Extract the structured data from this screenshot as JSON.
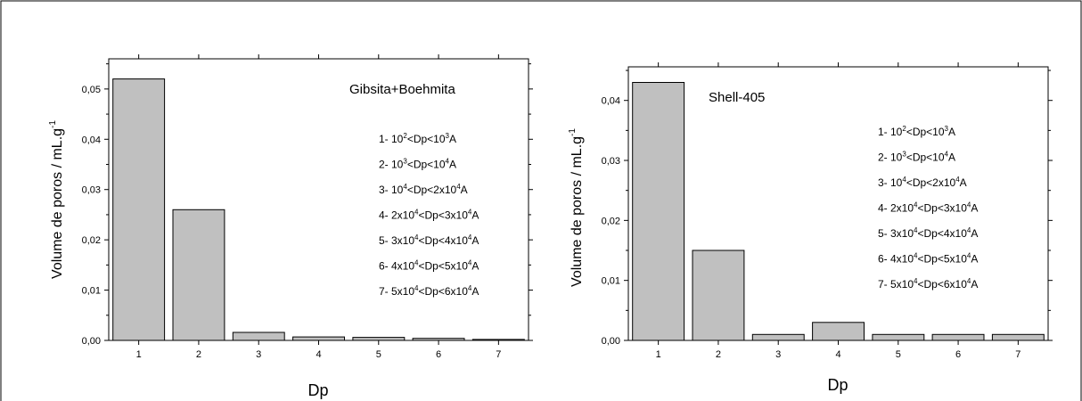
{
  "chart_data": [
    {
      "type": "bar",
      "categories": [
        "1",
        "2",
        "3",
        "4",
        "5",
        "6",
        "7"
      ],
      "values": [
        0.052,
        0.026,
        0.0016,
        0.0007,
        0.0006,
        0.0004,
        0.0002
      ],
      "ylim": [
        0,
        0.056
      ],
      "yticks": [
        "0,00",
        "0,01",
        "0,02",
        "0,03",
        "0,04",
        "0,05"
      ],
      "ytick_values": [
        0,
        0.01,
        0.02,
        0.03,
        0.04,
        0.05
      ],
      "ylabel": "Volume de poros / mL.g",
      "ylabel_sup": "-1",
      "xlabel": "Dp",
      "annotation": "Gibsita+Boehmita",
      "legend": [
        {
          "pre": "1- 10",
          "sup1": "2",
          "mid": "<Dp<10",
          "sup2": "3",
          "post": "A"
        },
        {
          "pre": "2- 10",
          "sup1": "3",
          "mid": "<Dp<10",
          "sup2": "4",
          "post": "A"
        },
        {
          "pre": "3- 10",
          "sup1": "4",
          "mid": "<Dp<2x10",
          "sup2": "4",
          "post": "A"
        },
        {
          "pre": "4- 2x10",
          "sup1": "4",
          "mid": "<Dp<3x10",
          "sup2": "4",
          "post": "A"
        },
        {
          "pre": "5- 3x10",
          "sup1": "4",
          "mid": "<Dp<4x10",
          "sup2": "4",
          "post": "A"
        },
        {
          "pre": "6- 4x10",
          "sup1": "4",
          "mid": "<Dp<5x10",
          "sup2": "4",
          "post": "A"
        },
        {
          "pre": "7- 5x10",
          "sup1": "4",
          "mid": "<Dp<6x10",
          "sup2": "4",
          "post": "A"
        }
      ],
      "grid": false
    },
    {
      "type": "bar",
      "categories": [
        "1",
        "2",
        "3",
        "4",
        "5",
        "6",
        "7"
      ],
      "values": [
        0.043,
        0.015,
        0.001,
        0.003,
        0.001,
        0.001,
        0.001
      ],
      "ylim": [
        0,
        0.0456
      ],
      "yticks": [
        "0,00",
        "0,01",
        "0,02",
        "0,03",
        "0,04"
      ],
      "ytick_values": [
        0,
        0.01,
        0.02,
        0.03,
        0.04
      ],
      "ylabel": "Volume de poros / mL.g",
      "ylabel_sup": "-1",
      "xlabel": "Dp",
      "annotation": "Shell-405",
      "legend": [
        {
          "pre": "1- 10",
          "sup1": "2",
          "mid": "<Dp<10",
          "sup2": "3",
          "post": "A"
        },
        {
          "pre": "2- 10",
          "sup1": "3",
          "mid": "<Dp<10",
          "sup2": "4",
          "post": "A"
        },
        {
          "pre": "3- 10",
          "sup1": "4",
          "mid": "<Dp<2x10",
          "sup2": "4",
          "post": "A"
        },
        {
          "pre": "4- 2x10",
          "sup1": "4",
          "mid": "<Dp<3x10",
          "sup2": "4",
          "post": "A"
        },
        {
          "pre": "5- 3x10",
          "sup1": "4",
          "mid": "<Dp<4x10",
          "sup2": "4",
          "post": "A"
        },
        {
          "pre": "6- 4x10",
          "sup1": "4",
          "mid": "<Dp<5x10",
          "sup2": "4",
          "post": "A"
        },
        {
          "pre": "7- 5x10",
          "sup1": "4",
          "mid": "<Dp<6x10",
          "sup2": "4",
          "post": "A"
        }
      ],
      "grid": false
    }
  ],
  "colors": {
    "bar_fill": "#c0c0c0",
    "bar_stroke": "#000000",
    "frame": "#000000"
  }
}
